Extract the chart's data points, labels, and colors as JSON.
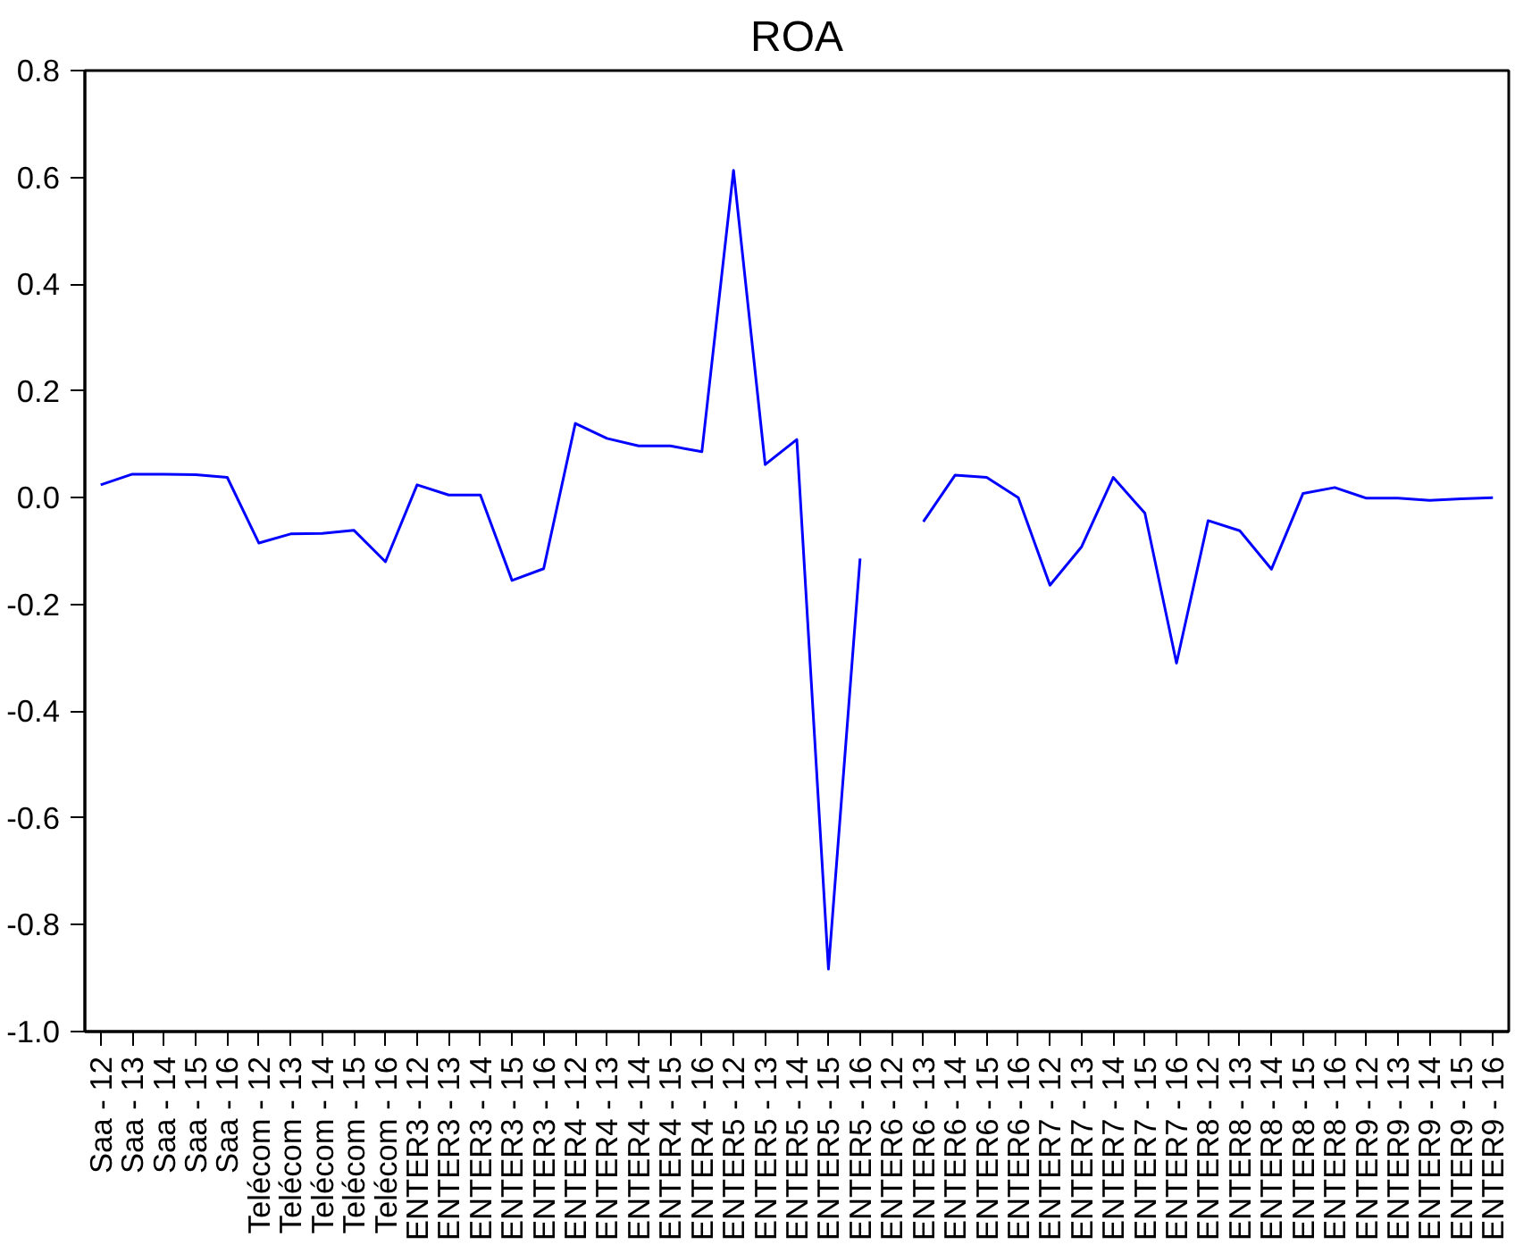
{
  "chart_data": {
    "type": "line",
    "title": "ROA",
    "categories": [
      "Saa - 12",
      "Saa - 13",
      "Saa - 14",
      "Saa - 15",
      "Saa - 16",
      "Telécom - 12",
      "Telécom - 13",
      "Telécom - 14",
      "Telécom - 15",
      "Telécom - 16",
      "ENTER3 - 12",
      "ENTER3 - 13",
      "ENTER3 - 14",
      "ENTER3 - 15",
      "ENTER3 - 16",
      "ENTER4 - 12",
      "ENTER4 - 13",
      "ENTER4 - 14",
      "ENTER4 - 15",
      "ENTER4 - 16",
      "ENTER5 - 12",
      "ENTER5 - 13",
      "ENTER5 - 14",
      "ENTER5 - 15",
      "ENTER5 - 16",
      "ENTER6 - 12",
      "ENTER6 - 13",
      "ENTER6 - 14",
      "ENTER6 - 15",
      "ENTER6 - 16",
      "ENTER7 - 12",
      "ENTER7 - 13",
      "ENTER7 - 14",
      "ENTER7 - 15",
      "ENTER7 - 16",
      "ENTER8 - 12",
      "ENTER8 - 13",
      "ENTER8 - 14",
      "ENTER8 - 15",
      "ENTER8 - 16",
      "ENTER9 - 12",
      "ENTER9 - 13",
      "ENTER9 - 14",
      "ENTER9 - 15",
      "ENTER9 - 16"
    ],
    "series": [
      {
        "color": "#0000ff",
        "values": [
          0.024,
          0.044,
          0.044,
          0.043,
          0.038,
          -0.085,
          -0.068,
          -0.067,
          -0.061,
          -0.12,
          0.024,
          0.005,
          0.005,
          -0.155,
          -0.133,
          0.139,
          0.111,
          0.097,
          0.097,
          0.086,
          0.613,
          0.062,
          0.109,
          -0.883,
          -0.114,
          null,
          -0.045,
          0.042,
          0.038,
          0.0,
          -0.164,
          -0.092,
          0.038,
          -0.029,
          -0.31,
          -0.043,
          -0.062,
          -0.134,
          0.008,
          0.019,
          -0.001,
          -0.001,
          -0.005,
          -0.002,
          0.0
        ]
      }
    ],
    "ylim": [
      -1.0,
      0.8
    ],
    "yticks": [
      {
        "value": -1.0,
        "label": "-1.0"
      },
      {
        "value": -0.8,
        "label": "-0.8"
      },
      {
        "value": -0.6,
        "label": "-0.6"
      },
      {
        "value": -0.4,
        "label": "-0.4"
      },
      {
        "value": -0.2,
        "label": "-0.2"
      },
      {
        "value": 0.0,
        "label": "0.0"
      },
      {
        "value": 0.2,
        "label": "0.2"
      },
      {
        "value": 0.4,
        "label": "0.4"
      },
      {
        "value": 0.6,
        "label": "0.6"
      },
      {
        "value": 0.8,
        "label": "0.8"
      }
    ],
    "grid": false,
    "marker": "none",
    "line_style": "solid"
  }
}
